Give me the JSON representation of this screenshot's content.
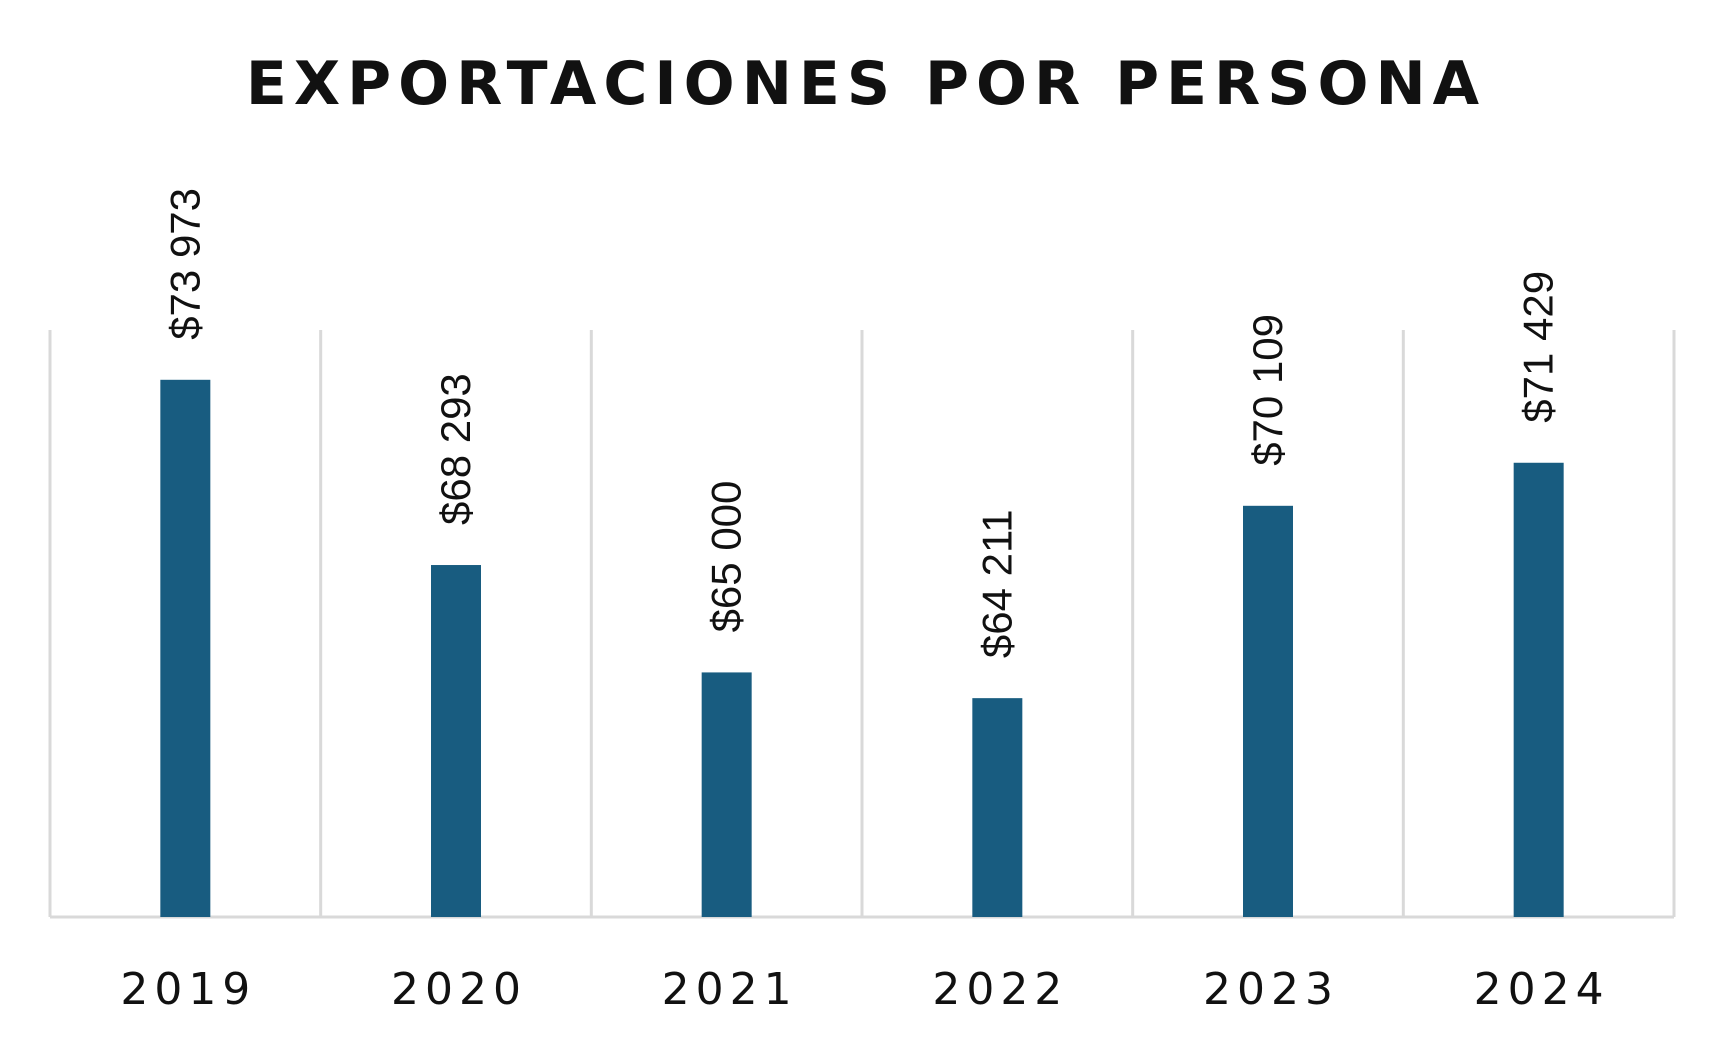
{
  "chart_data": {
    "type": "bar",
    "title": "EXPORTACIONES POR PERSONA",
    "categories": [
      "2019",
      "2020",
      "2021",
      "2022",
      "2023",
      "2024"
    ],
    "values": [
      73973,
      68293,
      65000,
      64211,
      70109,
      71429
    ],
    "data_labels": [
      "$73 973",
      "$68 293",
      "$65 000",
      "$64 211",
      "$70 109",
      "$71 429"
    ],
    "xlabel": "",
    "ylabel": "",
    "ylim": [
      57500,
      75500
    ],
    "grid": false,
    "category_separators": true,
    "legend": "none",
    "bar_color": "#185c80",
    "axis_color": "#d9d9d9",
    "text_color": "#111111"
  }
}
